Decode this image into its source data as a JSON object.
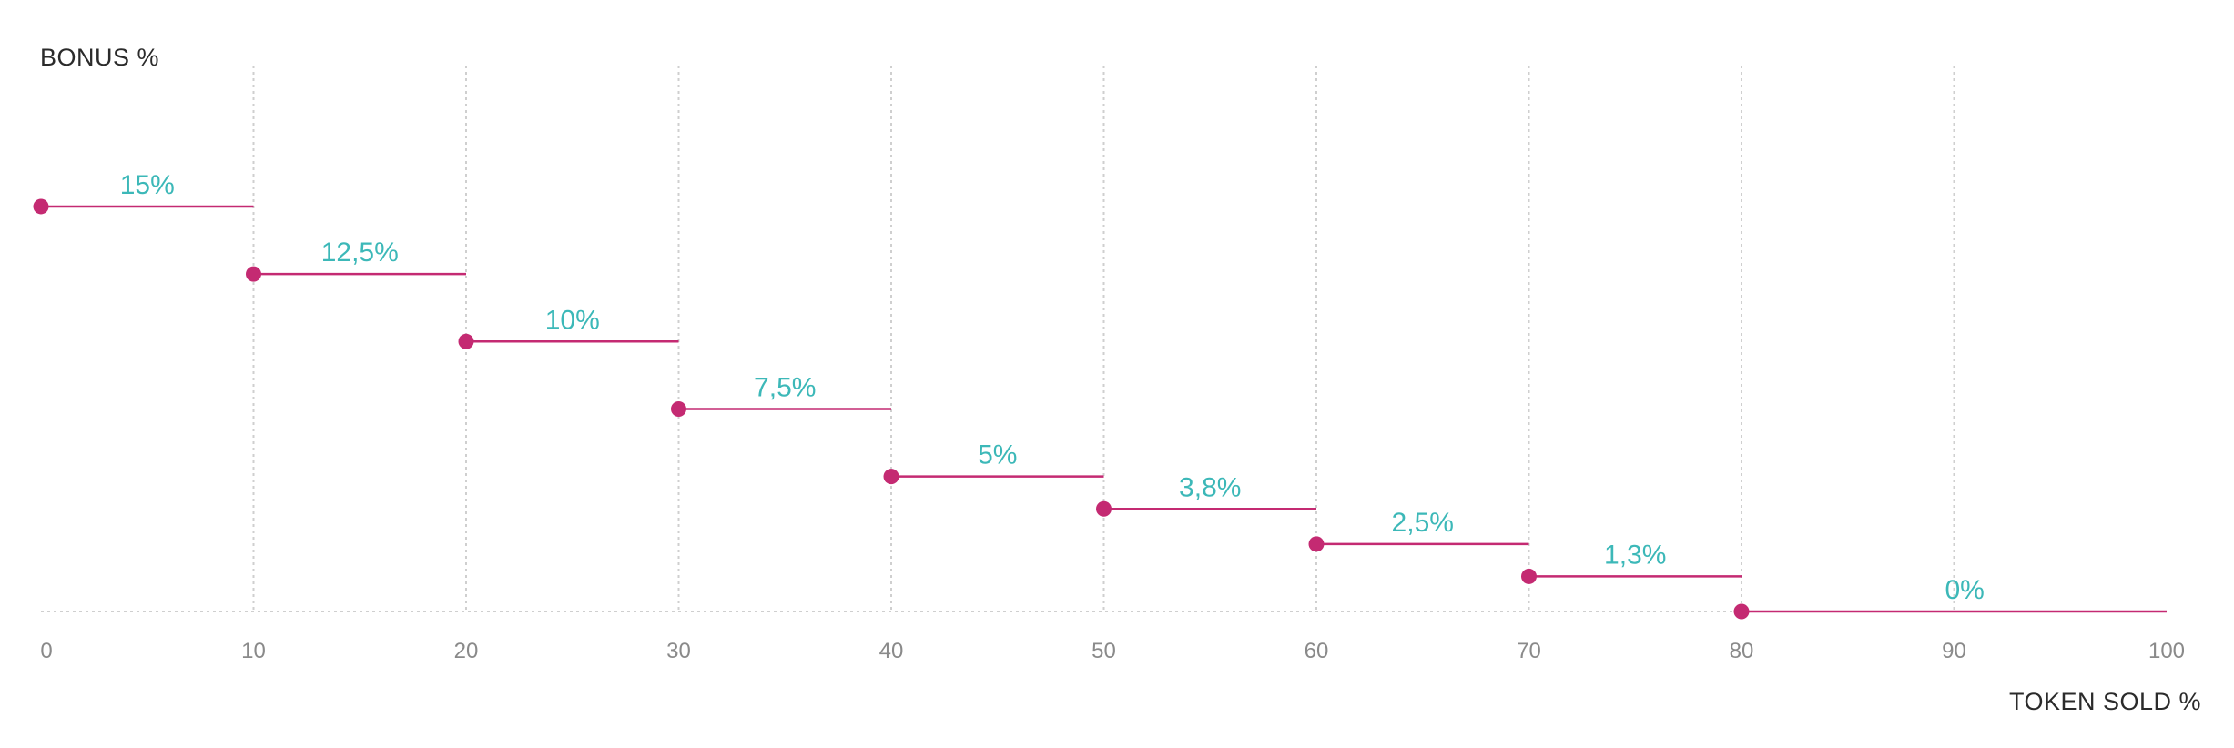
{
  "chart_data": {
    "type": "line",
    "subtype": "step",
    "ylabel": "BONUS %",
    "xlabel": "TOKEN SOLD %",
    "xlim": [
      0,
      100
    ],
    "ylim": [
      0,
      20
    ],
    "xticks": [
      0,
      10,
      20,
      30,
      40,
      50,
      60,
      70,
      80,
      90,
      100
    ],
    "steps": [
      {
        "x_start": 0,
        "x_end": 10,
        "y": 15,
        "label": "15%"
      },
      {
        "x_start": 10,
        "x_end": 20,
        "y": 12.5,
        "label": "12,5%"
      },
      {
        "x_start": 20,
        "x_end": 30,
        "y": 10,
        "label": "10%"
      },
      {
        "x_start": 30,
        "x_end": 40,
        "y": 7.5,
        "label": "7,5%"
      },
      {
        "x_start": 40,
        "x_end": 50,
        "y": 5,
        "label": "5%"
      },
      {
        "x_start": 50,
        "x_end": 60,
        "y": 3.8,
        "label": "3,8%"
      },
      {
        "x_start": 60,
        "x_end": 70,
        "y": 2.5,
        "label": "2,5%"
      },
      {
        "x_start": 70,
        "x_end": 80,
        "y": 1.3,
        "label": "1,3%"
      },
      {
        "x_start": 80,
        "x_end": 100,
        "y": 0,
        "label": "0%"
      }
    ],
    "grid": "vertical-dotted",
    "colors": {
      "line": "#c42a72",
      "marker": "#c42a72",
      "label": "#3cb8b8",
      "grid": "#cfcfcf",
      "tick": "#8a8a8a"
    }
  }
}
